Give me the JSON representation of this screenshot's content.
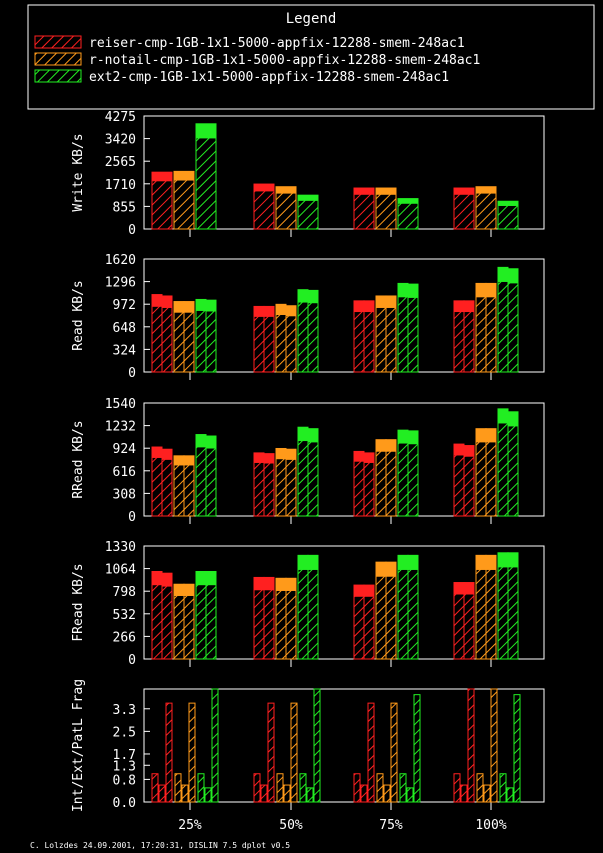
{
  "legend": {
    "title": "Legend",
    "entries": [
      {
        "label": "reiser-cmp-1GB-1x1-5000-appfix-12288-smem-248ac1",
        "color": "#ff2020"
      },
      {
        "label": "r-notail-cmp-1GB-1x1-5000-appfix-12288-smem-248ac1",
        "color": "#ff9a1a"
      },
      {
        "label": "ext2-cmp-1GB-1x1-5000-appfix-12288-smem-248ac1",
        "color": "#22ee22"
      }
    ]
  },
  "footer": "C. Lolzdes 24.09.2001, 17:20:31, DISLIN 7.5 dplot v0.5",
  "colors": {
    "background": "#000000",
    "axes": "#ffffff"
  },
  "chart_data": [
    {
      "type": "bar",
      "ylabel": "Write KB/s",
      "ylim": [
        0,
        4275
      ],
      "yticks": [
        "0",
        "855",
        "1710",
        "2565",
        "3420",
        "4275"
      ],
      "categories": [
        "25%",
        "50%",
        "75%",
        "100%"
      ],
      "series": [
        {
          "name": "reiser-cmp-1GB-1x1-5000-appfix-12288-smem-248ac1",
          "values": [
            [
              2150
            ],
            [
              1700
            ],
            [
              1550
            ],
            [
              1550
            ]
          ]
        },
        {
          "name": "r-notail-cmp-1GB-1x1-5000-appfix-12288-smem-248ac1",
          "values": [
            [
              2180
            ],
            [
              1600
            ],
            [
              1550
            ],
            [
              1600
            ]
          ]
        },
        {
          "name": "ext2-cmp-1GB-1x1-5000-appfix-12288-smem-248ac1",
          "values": [
            [
              3980
            ],
            [
              1280
            ],
            [
              1150
            ],
            [
              1050
            ]
          ]
        }
      ]
    },
    {
      "type": "bar",
      "ylabel": "Read KB/s",
      "ylim": [
        0,
        1620
      ],
      "yticks": [
        "0",
        "324",
        "648",
        "972",
        "1296",
        "1620"
      ],
      "categories": [
        "25%",
        "50%",
        "75%",
        "100%"
      ],
      "series": [
        {
          "name": "reiser-cmp-1GB-1x1-5000-appfix-12288-smem-248ac1",
          "values": [
            [
              1110,
              1090
            ],
            [
              940,
              940
            ],
            [
              1020,
              1020
            ],
            [
              1020,
              1020
            ]
          ]
        },
        {
          "name": "r-notail-cmp-1GB-1x1-5000-appfix-12288-smem-248ac1",
          "values": [
            [
              1010,
              1010
            ],
            [
              970,
              950
            ],
            [
              1090,
              1090
            ],
            [
              1270,
              1270
            ]
          ]
        },
        {
          "name": "ext2-cmp-1GB-1x1-5000-appfix-12288-smem-248ac1",
          "values": [
            [
              1040,
              1030
            ],
            [
              1180,
              1170
            ],
            [
              1270,
              1260
            ],
            [
              1500,
              1480
            ]
          ]
        }
      ]
    },
    {
      "type": "bar",
      "ylabel": "RRead KB/s",
      "ylim": [
        0,
        1540
      ],
      "yticks": [
        "0",
        "308",
        "616",
        "924",
        "1232",
        "1540"
      ],
      "categories": [
        "25%",
        "50%",
        "75%",
        "100%"
      ],
      "series": [
        {
          "name": "reiser-cmp-1GB-1x1-5000-appfix-12288-smem-248ac1",
          "values": [
            [
              940,
              910
            ],
            [
              860,
              850
            ],
            [
              880,
              860
            ],
            [
              980,
              960
            ]
          ]
        },
        {
          "name": "r-notail-cmp-1GB-1x1-5000-appfix-12288-smem-248ac1",
          "values": [
            [
              820,
              820
            ],
            [
              920,
              910
            ],
            [
              1040,
              1040
            ],
            [
              1190,
              1190
            ]
          ]
        },
        {
          "name": "ext2-cmp-1GB-1x1-5000-appfix-12288-smem-248ac1",
          "values": [
            [
              1110,
              1090
            ],
            [
              1210,
              1190
            ],
            [
              1170,
              1160
            ],
            [
              1460,
              1420
            ]
          ]
        }
      ]
    },
    {
      "type": "bar",
      "ylabel": "FRead KB/s",
      "ylim": [
        0,
        1330
      ],
      "yticks": [
        "0",
        "266",
        "532",
        "798",
        "1064",
        "1330"
      ],
      "categories": [
        "25%",
        "50%",
        "75%",
        "100%"
      ],
      "series": [
        {
          "name": "reiser-cmp-1GB-1x1-5000-appfix-12288-smem-248ac1",
          "values": [
            [
              1030,
              1010
            ],
            [
              960,
              960
            ],
            [
              870,
              870
            ],
            [
              900,
              900
            ]
          ]
        },
        {
          "name": "r-notail-cmp-1GB-1x1-5000-appfix-12288-smem-248ac1",
          "values": [
            [
              880,
              880
            ],
            [
              950,
              950
            ],
            [
              1140,
              1140
            ],
            [
              1220,
              1220
            ]
          ]
        },
        {
          "name": "ext2-cmp-1GB-1x1-5000-appfix-12288-smem-248ac1",
          "values": [
            [
              1030,
              1030
            ],
            [
              1220,
              1220
            ],
            [
              1220,
              1220
            ],
            [
              1250,
              1250
            ]
          ]
        }
      ]
    },
    {
      "type": "bar",
      "ylabel": "Int/Ext/PatL Frag",
      "ylim": [
        0,
        4.0
      ],
      "yticks": [
        "0.0",
        "0.8",
        "1.3",
        "1.7",
        "2.5",
        "3.3"
      ],
      "categories": [
        "25%",
        "50%",
        "75%",
        "100%"
      ],
      "series": [
        {
          "name": "reiser-cmp-1GB-1x1-5000-appfix-12288-smem-248ac1",
          "values": [
            [
              1.0,
              0.6,
              3.5
            ],
            [
              1.0,
              0.6,
              3.5
            ],
            [
              1.0,
              0.6,
              3.5
            ],
            [
              1.0,
              0.6,
              4.0
            ]
          ]
        },
        {
          "name": "r-notail-cmp-1GB-1x1-5000-appfix-12288-smem-248ac1",
          "values": [
            [
              1.0,
              0.6,
              3.5
            ],
            [
              1.0,
              0.6,
              3.5
            ],
            [
              1.0,
              0.6,
              3.5
            ],
            [
              1.0,
              0.6,
              4.0
            ]
          ]
        },
        {
          "name": "ext2-cmp-1GB-1x1-5000-appfix-12288-smem-248ac1",
          "values": [
            [
              1.0,
              0.5,
              4.0
            ],
            [
              1.0,
              0.5,
              4.0
            ],
            [
              1.0,
              0.5,
              3.8
            ],
            [
              1.0,
              0.5,
              3.8
            ]
          ]
        }
      ]
    }
  ]
}
